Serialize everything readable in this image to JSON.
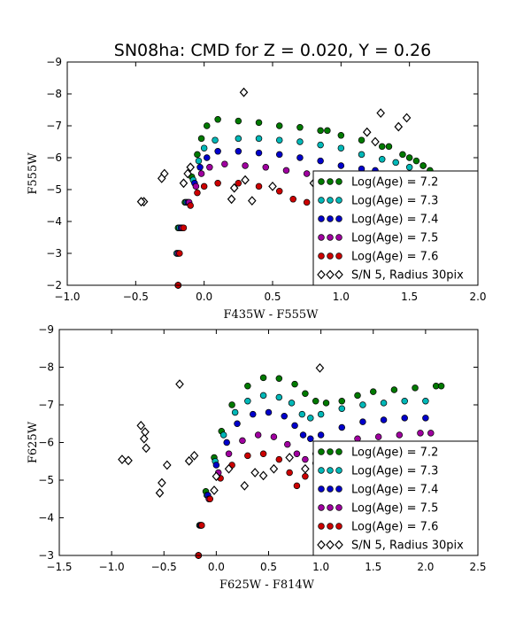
{
  "title": "SN08ha: CMD for Z = 0.020, Y = 0.26",
  "colors": {
    "Log(Age) = 7.2": "#007a00",
    "Log(Age) = 7.3": "#00b8b8",
    "Log(Age) = 7.4": "#0000cc",
    "Log(Age) = 7.5": "#a000a0",
    "Log(Age) = 7.6": "#cc0000",
    "observed": "#ffffff"
  },
  "chart_data": [
    {
      "type": "scatter",
      "xlabel": "F435W - F555W",
      "ylabel": "F555W",
      "xlim": [
        -1.0,
        2.0
      ],
      "ylim": [
        -9,
        -2
      ],
      "y_inverted": true,
      "xticks": [
        "−1.0",
        "−0.5",
        "0.0",
        "0.5",
        "1.0",
        "1.5",
        "2.0"
      ],
      "yticks": [
        "−9",
        "−8",
        "−7",
        "−6",
        "−5",
        "−4",
        "−3",
        "−2"
      ],
      "legend_position": "lower-right",
      "legend": [
        "Log(Age) = 7.2",
        "Log(Age) = 7.3",
        "Log(Age) = 7.4",
        "Log(Age) = 7.5",
        "Log(Age) = 7.6",
        "S/N 5, Radius 30pix"
      ],
      "series": [
        {
          "name": "Log(Age) = 7.2",
          "marker": "circle",
          "color": "#007a00",
          "points": [
            [
              -0.19,
              -2.0
            ],
            [
              -0.2,
              -3.0
            ],
            [
              -0.19,
              -3.8
            ],
            [
              -0.14,
              -4.6
            ],
            [
              -0.09,
              -5.4
            ],
            [
              -0.05,
              -6.1
            ],
            [
              -0.02,
              -6.6
            ],
            [
              0.02,
              -7.0
            ],
            [
              0.1,
              -7.2
            ],
            [
              0.25,
              -7.15
            ],
            [
              0.4,
              -7.1
            ],
            [
              0.55,
              -7.0
            ],
            [
              0.7,
              -6.95
            ],
            [
              0.85,
              -6.85
            ],
            [
              1.0,
              -6.7
            ],
            [
              1.15,
              -6.55
            ],
            [
              1.3,
              -6.35
            ],
            [
              1.45,
              -6.1
            ],
            [
              1.55,
              -5.9
            ],
            [
              1.6,
              -5.75
            ],
            [
              1.65,
              -5.6
            ],
            [
              1.35,
              -6.35
            ],
            [
              1.5,
              -6.0
            ],
            [
              0.9,
              -6.85
            ],
            [
              1.6,
              -5.75
            ]
          ]
        },
        {
          "name": "Log(Age) = 7.3",
          "marker": "circle",
          "color": "#00b8b8",
          "points": [
            [
              -0.19,
              -2.0
            ],
            [
              -0.2,
              -3.0
            ],
            [
              -0.18,
              -3.8
            ],
            [
              -0.13,
              -4.6
            ],
            [
              -0.08,
              -5.3
            ],
            [
              -0.04,
              -5.9
            ],
            [
              0.0,
              -6.3
            ],
            [
              0.08,
              -6.55
            ],
            [
              0.25,
              -6.6
            ],
            [
              0.4,
              -6.6
            ],
            [
              0.55,
              -6.55
            ],
            [
              0.7,
              -6.5
            ],
            [
              0.85,
              -6.4
            ],
            [
              1.0,
              -6.3
            ],
            [
              1.15,
              -6.1
            ],
            [
              1.3,
              -5.95
            ],
            [
              1.4,
              -5.85
            ],
            [
              1.5,
              -5.7
            ]
          ]
        },
        {
          "name": "Log(Age) = 7.4",
          "marker": "circle",
          "color": "#0000cc",
          "points": [
            [
              -0.19,
              -2.0
            ],
            [
              -0.19,
              -3.0
            ],
            [
              -0.17,
              -3.8
            ],
            [
              -0.12,
              -4.6
            ],
            [
              -0.07,
              -5.2
            ],
            [
              -0.03,
              -5.7
            ],
            [
              0.02,
              -6.0
            ],
            [
              0.1,
              -6.2
            ],
            [
              0.25,
              -6.2
            ],
            [
              0.4,
              -6.15
            ],
            [
              0.55,
              -6.1
            ],
            [
              0.7,
              -6.0
            ],
            [
              0.85,
              -5.9
            ],
            [
              1.0,
              -5.75
            ],
            [
              1.15,
              -5.65
            ],
            [
              1.25,
              -5.6
            ]
          ]
        },
        {
          "name": "Log(Age) = 7.5",
          "marker": "circle",
          "color": "#a000a0",
          "points": [
            [
              -0.19,
              -2.0
            ],
            [
              -0.19,
              -3.0
            ],
            [
              -0.16,
              -3.8
            ],
            [
              -0.11,
              -4.6
            ],
            [
              -0.06,
              -5.1
            ],
            [
              -0.02,
              -5.5
            ],
            [
              0.04,
              -5.7
            ],
            [
              0.15,
              -5.8
            ],
            [
              0.3,
              -5.75
            ],
            [
              0.45,
              -5.7
            ],
            [
              0.6,
              -5.6
            ],
            [
              0.75,
              -5.5
            ],
            [
              0.9,
              -5.35
            ],
            [
              1.0,
              -5.25
            ],
            [
              1.1,
              -5.2
            ]
          ]
        },
        {
          "name": "Log(Age) = 7.6",
          "marker": "circle",
          "color": "#cc0000",
          "points": [
            [
              -0.19,
              -2.0
            ],
            [
              -0.18,
              -3.0
            ],
            [
              -0.15,
              -3.8
            ],
            [
              -0.1,
              -4.5
            ],
            [
              -0.05,
              -4.9
            ],
            [
              0.0,
              -5.1
            ],
            [
              0.1,
              -5.2
            ],
            [
              0.25,
              -5.2
            ],
            [
              0.4,
              -5.1
            ],
            [
              0.55,
              -4.95
            ],
            [
              0.65,
              -4.7
            ],
            [
              0.75,
              -4.6
            ],
            [
              0.85,
              -4.55
            ],
            [
              0.95,
              -4.6
            ]
          ]
        },
        {
          "name": "S/N 5, Radius 30pix",
          "marker": "diamond",
          "color": "#ffffff",
          "points": [
            [
              0.29,
              -8.05
            ],
            [
              1.29,
              -7.4
            ],
            [
              1.48,
              -7.25
            ],
            [
              1.42,
              -6.97
            ],
            [
              1.19,
              -6.8
            ],
            [
              1.25,
              -6.5
            ],
            [
              -0.29,
              -5.5
            ],
            [
              -0.31,
              -5.35
            ],
            [
              -0.44,
              -4.62
            ],
            [
              -0.46,
              -4.62
            ],
            [
              -0.1,
              -5.7
            ],
            [
              -0.12,
              -5.5
            ],
            [
              -0.15,
              -5.2
            ],
            [
              0.3,
              -5.3
            ],
            [
              0.22,
              -5.05
            ],
            [
              0.35,
              -4.65
            ],
            [
              0.2,
              -4.7
            ],
            [
              0.5,
              -5.1
            ],
            [
              0.8,
              -5.2
            ],
            [
              0.9,
              -4.9
            ]
          ]
        }
      ]
    },
    {
      "type": "scatter",
      "xlabel": "F625W - F814W",
      "ylabel": "F625W",
      "xlim": [
        -1.5,
        2.5
      ],
      "ylim": [
        -9,
        -3
      ],
      "y_inverted": true,
      "xticks": [
        "−1.5",
        "−1.0",
        "−0.5",
        "0.0",
        "0.5",
        "1.0",
        "1.5",
        "2.0",
        "2.5"
      ],
      "yticks": [
        "−9",
        "−8",
        "−7",
        "−6",
        "−5",
        "−4",
        "−3"
      ],
      "legend_position": "lower-right",
      "legend": [
        "Log(Age) = 7.2",
        "Log(Age) = 7.3",
        "Log(Age) = 7.4",
        "Log(Age) = 7.5",
        "Log(Age) = 7.6",
        "S/N 5, Radius 30pix"
      ],
      "series": [
        {
          "name": "Log(Age) = 7.2",
          "marker": "circle",
          "color": "#007a00",
          "points": [
            [
              -0.17,
              -3.0
            ],
            [
              -0.16,
              -3.8
            ],
            [
              -0.1,
              -4.7
            ],
            [
              -0.02,
              -5.6
            ],
            [
              0.05,
              -6.3
            ],
            [
              0.15,
              -7.0
            ],
            [
              0.3,
              -7.5
            ],
            [
              0.45,
              -7.72
            ],
            [
              0.6,
              -7.7
            ],
            [
              0.75,
              -7.55
            ],
            [
              0.85,
              -7.3
            ],
            [
              0.95,
              -7.1
            ],
            [
              1.05,
              -7.05
            ],
            [
              1.2,
              -7.1
            ],
            [
              1.35,
              -7.25
            ],
            [
              1.5,
              -7.35
            ],
            [
              1.7,
              -7.4
            ],
            [
              1.9,
              -7.45
            ],
            [
              2.1,
              -7.5
            ],
            [
              2.15,
              -7.5
            ]
          ]
        },
        {
          "name": "Log(Age) = 7.3",
          "marker": "circle",
          "color": "#00b8b8",
          "points": [
            [
              -0.17,
              -3.0
            ],
            [
              -0.15,
              -3.8
            ],
            [
              -0.09,
              -4.6
            ],
            [
              -0.01,
              -5.5
            ],
            [
              0.07,
              -6.2
            ],
            [
              0.18,
              -6.8
            ],
            [
              0.3,
              -7.1
            ],
            [
              0.45,
              -7.25
            ],
            [
              0.6,
              -7.2
            ],
            [
              0.72,
              -7.05
            ],
            [
              0.82,
              -6.75
            ],
            [
              0.9,
              -6.65
            ],
            [
              1.0,
              -6.75
            ],
            [
              1.2,
              -6.9
            ],
            [
              1.4,
              -7.0
            ],
            [
              1.6,
              -7.05
            ],
            [
              1.8,
              -7.1
            ],
            [
              2.0,
              -7.1
            ]
          ]
        },
        {
          "name": "Log(Age) = 7.4",
          "marker": "circle",
          "color": "#0000cc",
          "points": [
            [
              -0.17,
              -3.0
            ],
            [
              -0.15,
              -3.8
            ],
            [
              -0.08,
              -4.6
            ],
            [
              0.0,
              -5.4
            ],
            [
              0.1,
              -6.0
            ],
            [
              0.2,
              -6.5
            ],
            [
              0.35,
              -6.75
            ],
            [
              0.5,
              -6.8
            ],
            [
              0.65,
              -6.7
            ],
            [
              0.75,
              -6.45
            ],
            [
              0.83,
              -6.2
            ],
            [
              0.9,
              -6.1
            ],
            [
              1.0,
              -6.2
            ],
            [
              1.2,
              -6.4
            ],
            [
              1.4,
              -6.55
            ],
            [
              1.6,
              -6.6
            ],
            [
              1.8,
              -6.65
            ],
            [
              2.0,
              -6.65
            ]
          ]
        },
        {
          "name": "Log(Age) = 7.5",
          "marker": "circle",
          "color": "#a000a0",
          "points": [
            [
              -0.17,
              -3.0
            ],
            [
              -0.14,
              -3.8
            ],
            [
              -0.07,
              -4.5
            ],
            [
              0.02,
              -5.2
            ],
            [
              0.12,
              -5.7
            ],
            [
              0.25,
              -6.05
            ],
            [
              0.4,
              -6.2
            ],
            [
              0.55,
              -6.15
            ],
            [
              0.68,
              -5.95
            ],
            [
              0.77,
              -5.7
            ],
            [
              0.85,
              -5.55
            ],
            [
              0.95,
              -5.7
            ],
            [
              1.15,
              -5.95
            ],
            [
              1.35,
              -6.1
            ],
            [
              1.55,
              -6.15
            ],
            [
              1.75,
              -6.2
            ],
            [
              1.95,
              -6.25
            ],
            [
              2.05,
              -6.25
            ]
          ]
        },
        {
          "name": "Log(Age) = 7.6",
          "marker": "circle",
          "color": "#cc0000",
          "points": [
            [
              -0.17,
              -3.0
            ],
            [
              -0.14,
              -3.8
            ],
            [
              -0.06,
              -4.5
            ],
            [
              0.04,
              -5.05
            ],
            [
              0.15,
              -5.4
            ],
            [
              0.3,
              -5.65
            ],
            [
              0.45,
              -5.7
            ],
            [
              0.6,
              -5.55
            ],
            [
              0.7,
              -5.2
            ],
            [
              0.77,
              -4.85
            ],
            [
              0.85,
              -5.1
            ],
            [
              0.95,
              -5.45
            ],
            [
              1.1,
              -5.6
            ],
            [
              1.3,
              -5.75
            ],
            [
              1.5,
              -5.8
            ],
            [
              1.7,
              -5.85
            ],
            [
              1.9,
              -5.9
            ],
            [
              2.0,
              -5.9
            ]
          ]
        },
        {
          "name": "S/N 5, Radius 30pix",
          "marker": "diamond",
          "color": "#ffffff",
          "points": [
            [
              -0.35,
              -7.55
            ],
            [
              0.99,
              -7.98
            ],
            [
              -0.72,
              -6.45
            ],
            [
              -0.68,
              -6.28
            ],
            [
              -0.69,
              -6.1
            ],
            [
              -0.67,
              -5.85
            ],
            [
              -0.9,
              -5.55
            ],
            [
              -0.84,
              -5.52
            ],
            [
              -0.47,
              -5.4
            ],
            [
              -0.52,
              -4.93
            ],
            [
              -0.54,
              -4.66
            ],
            [
              -0.26,
              -5.51
            ],
            [
              -0.21,
              -5.65
            ],
            [
              -0.02,
              -4.73
            ],
            [
              0.0,
              -5.1
            ],
            [
              0.12,
              -5.3
            ],
            [
              0.27,
              -4.85
            ],
            [
              0.37,
              -5.2
            ],
            [
              0.45,
              -5.12
            ],
            [
              0.55,
              -5.3
            ],
            [
              0.7,
              -5.6
            ],
            [
              0.85,
              -5.3
            ]
          ]
        }
      ]
    }
  ]
}
